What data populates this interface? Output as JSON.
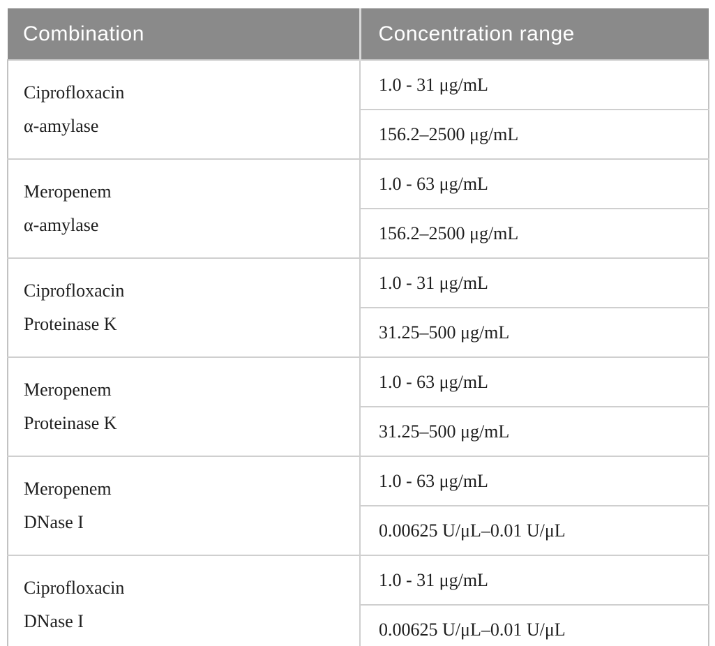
{
  "table": {
    "headers": {
      "combination": "Combination",
      "range": "Concentration range"
    },
    "rows": [
      {
        "drug": "Ciprofloxacin",
        "enzyme": "α-amylase",
        "ranges": [
          "1.0 - 31 μg/mL",
          "156.2–2500 μg/mL"
        ]
      },
      {
        "drug": "Meropenem",
        "enzyme": "α-amylase",
        "ranges": [
          "1.0 - 63 μg/mL",
          "156.2–2500 μg/mL"
        ]
      },
      {
        "drug": "Ciprofloxacin",
        "enzyme": "Proteinase K",
        "ranges": [
          "1.0 - 31 μg/mL",
          "31.25–500 μg/mL"
        ]
      },
      {
        "drug": "Meropenem",
        "enzyme": "Proteinase K",
        "ranges": [
          "1.0 - 63 μg/mL",
          "31.25–500 μg/mL"
        ]
      },
      {
        "drug": "Meropenem",
        "enzyme": "DNase I",
        "ranges": [
          "1.0 - 63 μg/mL",
          "0.00625 U/μL–0.01 U/μL"
        ]
      },
      {
        "drug": "Ciprofloxacin",
        "enzyme": "DNase I",
        "ranges": [
          "1.0 - 31 μg/mL",
          "0.00625 U/μL–0.01 U/μL"
        ]
      }
    ],
    "colors": {
      "header_bg": "#8a8a8a",
      "header_text": "#ffffff",
      "border_inner": "#cfcfcf",
      "border_outer": "#b3b3b3",
      "body_text": "#1f1f1f"
    }
  }
}
